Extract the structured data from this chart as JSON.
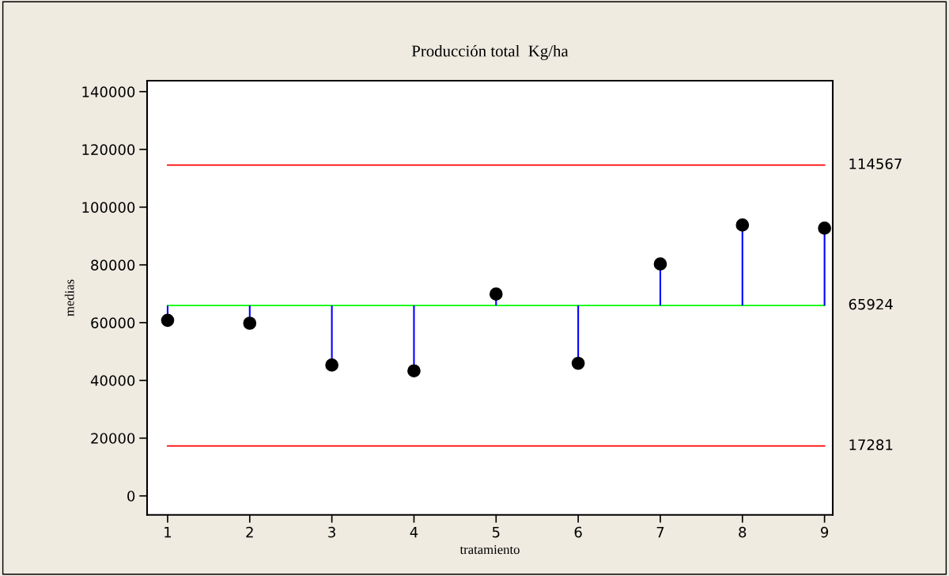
{
  "chart_data": {
    "type": "scatter",
    "title": "Producción total  Kg/ha",
    "xlabel": "tratamiento",
    "ylabel": "medias",
    "x": [
      1,
      2,
      3,
      4,
      5,
      6,
      7,
      8,
      9
    ],
    "series": [
      {
        "color": "#000000",
        "values": [
          60800,
          59800,
          45300,
          43300,
          69900,
          45900,
          80300,
          93800,
          92700
        ],
        "errors": [
          [
            60800,
            65924
          ],
          [
            59800,
            65924
          ],
          [
            45300,
            65924
          ],
          [
            43300,
            65924
          ],
          [
            65924,
            69900
          ],
          [
            45900,
            65924
          ],
          [
            65924,
            80300
          ],
          [
            65924,
            93800
          ],
          [
            65924,
            92700
          ]
        ]
      }
    ],
    "marker": "circle",
    "xlim": [
      0.75,
      9.1
    ],
    "xticks": [
      1,
      2,
      3,
      4,
      5,
      6,
      7,
      8,
      9
    ],
    "ylim": [
      -6600,
      143800
    ],
    "yticks": [
      0,
      20000,
      40000,
      60000,
      80000,
      100000,
      120000,
      140000
    ],
    "ref_lines": [
      {
        "axis": "y",
        "value": 114567,
        "label": "114567",
        "color": "#ff0000"
      },
      {
        "axis": "y",
        "value": 65924,
        "label": "65924",
        "color": "#00ff00"
      },
      {
        "axis": "y",
        "value": 17281,
        "label": "17281",
        "color": "#ff0000"
      }
    ],
    "grid": false,
    "legend": false
  }
}
